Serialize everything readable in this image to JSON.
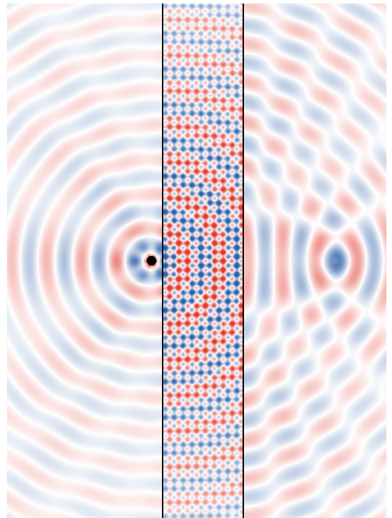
{
  "figure": {
    "kind": "wave-field-simulation",
    "colormap": {
      "negative": "#2f5fa8",
      "zero": "#ffffff",
      "positive": "#e2382c",
      "source": "#000000"
    },
    "boundary_line_color": "#000000",
    "regions": [
      "left-medium",
      "slab",
      "right-medium"
    ]
  }
}
